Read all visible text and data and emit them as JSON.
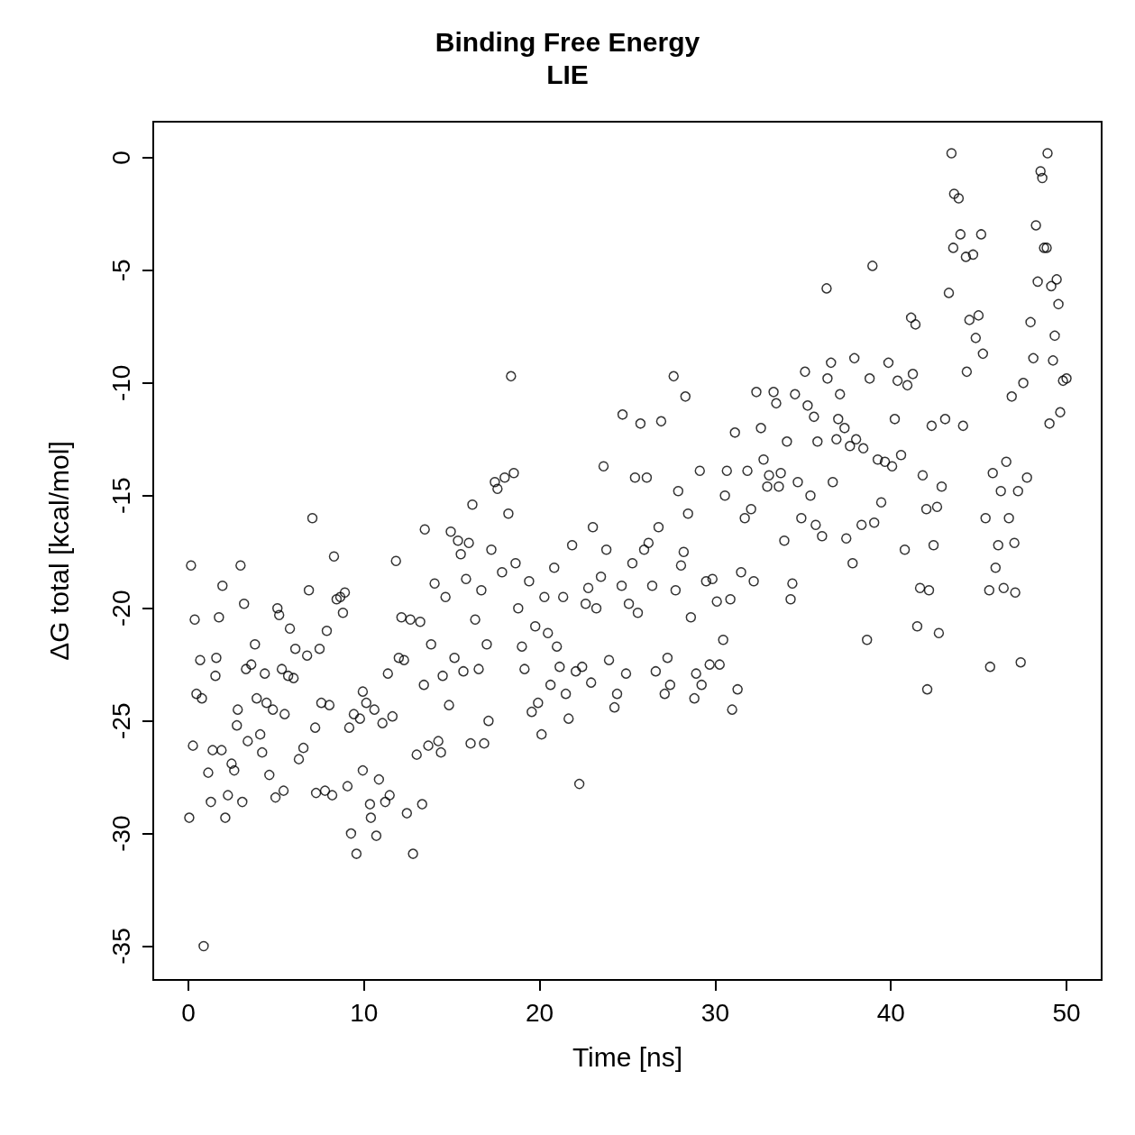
{
  "chart_data": {
    "type": "scatter",
    "title": "Binding Free Energy",
    "subtitle": "LIE",
    "xlabel": "Time [ns]",
    "ylabel": "ΔG total [kcal/mol]",
    "marker": "circle",
    "color": "#000000",
    "xlim": [
      -2,
      52
    ],
    "xticks": [
      0,
      10,
      20,
      30,
      40,
      50
    ],
    "ylim": [
      -36.5,
      1.6
    ],
    "yticks": [
      -35,
      -30,
      -25,
      -20,
      -15,
      -10,
      -5,
      0
    ],
    "x": [
      0.05,
      0.15,
      0.36,
      0.26,
      0.46,
      0.77,
      0.67,
      0.87,
      1.13,
      1.28,
      1.38,
      1.54,
      1.59,
      1.74,
      1.94,
      1.89,
      2.1,
      2.25,
      2.46,
      2.61,
      2.76,
      2.81,
      2.97,
      3.07,
      3.17,
      3.28,
      3.38,
      3.58,
      3.79,
      3.89,
      4.09,
      4.2,
      4.35,
      4.45,
      4.61,
      4.81,
      4.96,
      5.07,
      5.17,
      5.32,
      5.48,
      5.42,
      5.68,
      5.78,
      5.99,
      6.09,
      6.29,
      6.55,
      6.86,
      6.76,
      7.06,
      7.22,
      7.27,
      7.47,
      7.57,
      7.78,
      7.88,
      8.03,
      8.19,
      8.29,
      8.44,
      8.65,
      8.8,
      8.91,
      9.06,
      9.16,
      9.26,
      9.42,
      9.57,
      9.77,
      9.93,
      9.93,
      10.13,
      10.34,
      10.39,
      10.59,
      10.7,
      10.85,
      11.05,
      11.21,
      11.36,
      11.46,
      11.62,
      11.82,
      11.98,
      12.13,
      12.28,
      12.44,
      12.64,
      12.79,
      13.0,
      13.2,
      13.31,
      13.41,
      13.46,
      13.66,
      13.82,
      14.02,
      14.23,
      14.38,
      14.48,
      14.64,
      14.84,
      14.94,
      15.15,
      15.35,
      15.51,
      15.66,
      15.81,
      15.97,
      16.07,
      16.17,
      16.33,
      16.53,
      16.68,
      16.84,
      16.99,
      17.09,
      17.25,
      17.45,
      17.6,
      17.86,
      18.01,
      18.22,
      18.37,
      18.53,
      18.63,
      18.78,
      18.99,
      19.14,
      19.4,
      19.55,
      19.75,
      19.91,
      20.11,
      20.27,
      20.47,
      20.62,
      20.83,
      20.98,
      21.14,
      21.34,
      21.49,
      21.65,
      21.85,
      22.06,
      22.26,
      22.42,
      22.62,
      22.77,
      22.93,
      23.03,
      23.23,
      23.49,
      23.64,
      23.8,
      23.95,
      24.26,
      24.41,
      24.67,
      24.72,
      24.92,
      25.08,
      25.28,
      25.43,
      25.59,
      25.74,
      25.95,
      26.1,
      26.2,
      26.41,
      26.61,
      26.77,
      26.92,
      27.12,
      27.28,
      27.43,
      27.63,
      27.74,
      27.89,
      28.05,
      28.2,
      28.3,
      28.45,
      28.61,
      28.81,
      28.91,
      29.12,
      29.22,
      29.48,
      29.68,
      29.84,
      30.09,
      30.25,
      30.45,
      30.55,
      30.66,
      30.86,
      30.96,
      31.12,
      31.27,
      31.47,
      31.68,
      31.83,
      32.04,
      32.19,
      32.34,
      32.6,
      32.75,
      32.96,
      33.06,
      33.32,
      33.47,
      33.62,
      33.73,
      33.93,
      34.08,
      34.29,
      34.39,
      34.54,
      34.7,
      34.9,
      35.11,
      35.26,
      35.42,
      35.62,
      35.72,
      35.82,
      36.08,
      36.34,
      36.39,
      36.59,
      36.69,
      36.9,
      37.0,
      37.1,
      37.36,
      37.46,
      37.67,
      37.82,
      37.92,
      38.02,
      38.33,
      38.43,
      38.64,
      38.79,
      38.95,
      39.05,
      39.25,
      39.45,
      39.66,
      39.86,
      40.07,
      40.22,
      40.38,
      40.58,
      40.79,
      40.94,
      41.15,
      41.25,
      41.4,
      41.5,
      41.66,
      41.81,
      42.02,
      42.07,
      42.17,
      42.32,
      42.43,
      42.63,
      42.73,
      42.89,
      43.09,
      43.3,
      43.45,
      43.55,
      43.6,
      43.86,
      43.96,
      44.11,
      44.27,
      44.32,
      44.47,
      44.68,
      44.83,
      44.99,
      45.14,
      45.24,
      45.39,
      45.6,
      45.65,
      45.8,
      45.96,
      46.11,
      46.26,
      46.42,
      46.57,
      46.72,
      46.88,
      47.03,
      47.08,
      47.24,
      47.39,
      47.54,
      47.75,
      47.95,
      48.11,
      48.26,
      48.36,
      48.52,
      48.62,
      48.72,
      48.87,
      48.92,
      49.03,
      49.13,
      49.23,
      49.33,
      49.44,
      49.54,
      49.64,
      49.8,
      50.0
    ],
    "values": [
      -29.3,
      -18.1,
      -20.5,
      -26.1,
      -23.8,
      -24.0,
      -22.3,
      -35.0,
      -27.3,
      -28.6,
      -26.3,
      -23.0,
      -22.2,
      -20.4,
      -19.0,
      -26.3,
      -29.3,
      -28.3,
      -26.9,
      -27.2,
      -25.2,
      -24.5,
      -18.1,
      -28.6,
      -19.8,
      -22.7,
      -25.9,
      -22.5,
      -21.6,
      -24.0,
      -25.6,
      -26.4,
      -22.9,
      -24.2,
      -27.4,
      -24.5,
      -28.4,
      -20.0,
      -20.3,
      -22.7,
      -24.7,
      -28.1,
      -23.0,
      -20.9,
      -23.1,
      -21.8,
      -26.7,
      -26.2,
      -19.2,
      -22.1,
      -16.0,
      -25.3,
      -28.2,
      -21.8,
      -24.2,
      -28.1,
      -21.0,
      -24.3,
      -28.3,
      -17.7,
      -19.6,
      -19.5,
      -20.2,
      -19.3,
      -27.9,
      -25.3,
      -30.0,
      -24.7,
      -30.9,
      -24.9,
      -23.7,
      -27.2,
      -24.2,
      -28.7,
      -29.3,
      -24.5,
      -30.1,
      -27.6,
      -25.1,
      -28.6,
      -22.9,
      -28.3,
      -24.8,
      -17.9,
      -22.2,
      -20.4,
      -22.3,
      -29.1,
      -20.5,
      -30.9,
      -26.5,
      -20.6,
      -28.7,
      -23.4,
      -16.5,
      -26.1,
      -21.6,
      -18.9,
      -25.9,
      -26.4,
      -23.0,
      -19.5,
      -24.3,
      -16.6,
      -22.2,
      -17.0,
      -17.6,
      -22.8,
      -18.7,
      -17.1,
      -26.0,
      -15.4,
      -20.5,
      -22.7,
      -19.2,
      -26.0,
      -21.6,
      -25.0,
      -17.4,
      -14.4,
      -14.7,
      -18.4,
      -14.2,
      -15.8,
      -9.7,
      -14.0,
      -18.0,
      -20.0,
      -21.7,
      -22.7,
      -18.8,
      -24.6,
      -20.8,
      -24.2,
      -25.6,
      -19.5,
      -21.1,
      -23.4,
      -18.2,
      -21.7,
      -22.6,
      -19.5,
      -23.8,
      -24.9,
      -17.2,
      -22.8,
      -27.8,
      -22.6,
      -19.8,
      -19.1,
      -23.3,
      -16.4,
      -20.0,
      -18.6,
      -13.7,
      -17.4,
      -22.3,
      -24.4,
      -23.8,
      -19.0,
      -11.4,
      -22.9,
      -19.8,
      -18.0,
      -14.2,
      -20.2,
      -11.8,
      -17.4,
      -14.2,
      -17.1,
      -19.0,
      -22.8,
      -16.4,
      -11.7,
      -23.8,
      -22.2,
      -23.4,
      -9.7,
      -19.2,
      -14.8,
      -18.1,
      -17.5,
      -10.6,
      -15.8,
      -20.4,
      -24.0,
      -22.9,
      -13.9,
      -23.4,
      -18.8,
      -22.5,
      -18.7,
      -19.7,
      -22.5,
      -21.4,
      -15.0,
      -13.9,
      -19.6,
      -24.5,
      -12.2,
      -23.6,
      -18.4,
      -16.0,
      -13.9,
      -15.6,
      -18.8,
      -10.4,
      -12.0,
      -13.4,
      -14.6,
      -14.1,
      -10.4,
      -10.9,
      -14.6,
      -14.0,
      -17.0,
      -12.6,
      -19.6,
      -18.9,
      -10.5,
      -14.4,
      -16.0,
      -9.5,
      -11.0,
      -15.0,
      -11.5,
      -16.3,
      -12.6,
      -16.8,
      -5.8,
      -9.8,
      -9.1,
      -14.4,
      -12.5,
      -11.6,
      -10.5,
      -12.0,
      -16.9,
      -12.8,
      -18.0,
      -8.9,
      -12.5,
      -16.3,
      -12.9,
      -21.4,
      -9.8,
      -4.8,
      -16.2,
      -13.4,
      -15.3,
      -13.5,
      -9.1,
      -13.7,
      -11.6,
      -9.9,
      -13.2,
      -17.4,
      -10.1,
      -7.1,
      -9.6,
      -7.4,
      -20.8,
      -19.1,
      -14.1,
      -15.6,
      -23.6,
      -19.2,
      -11.9,
      -17.2,
      -15.5,
      -21.1,
      -14.6,
      -11.6,
      -6.0,
      0.2,
      -4.0,
      -1.6,
      -1.8,
      -3.4,
      -11.9,
      -4.4,
      -9.5,
      -7.2,
      -4.3,
      -8.0,
      -7.0,
      -3.4,
      -8.7,
      -16.0,
      -19.2,
      -22.6,
      -14.0,
      -18.2,
      -17.2,
      -14.8,
      -19.1,
      -13.5,
      -16.0,
      -10.6,
      -17.1,
      -19.3,
      -14.8,
      -22.4,
      -10.0,
      -14.2,
      -7.3,
      -8.9,
      -3.0,
      -5.5,
      -0.6,
      -0.9,
      -4.0,
      -4.0,
      0.2,
      -11.8,
      -5.7,
      -9.0,
      -7.9,
      -5.4,
      -6.5,
      -11.3,
      -9.9,
      -9.8
    ]
  }
}
